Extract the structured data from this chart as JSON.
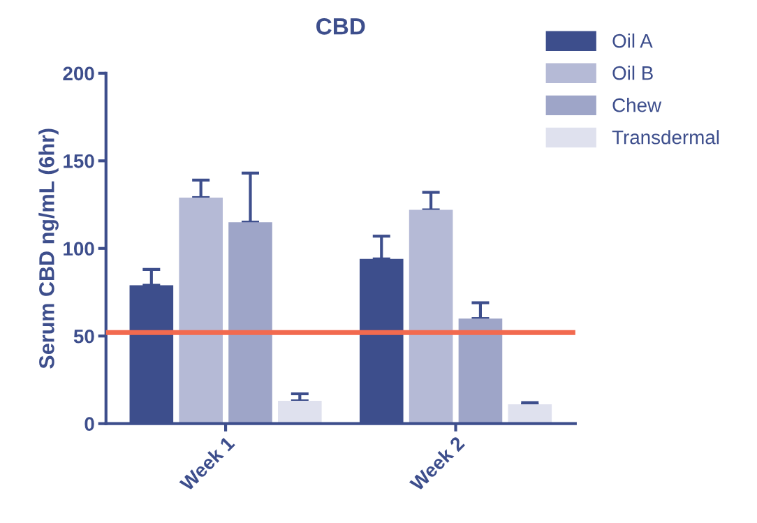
{
  "chart_data": {
    "type": "bar",
    "title": "CBD",
    "ylabel": "Serum CBD ng/mL (6hr)",
    "categories": [
      "Week 1",
      "Week 2"
    ],
    "series": [
      {
        "name": "Oil A",
        "color": "#3d4e8c",
        "values": [
          79,
          94
        ],
        "errors": [
          [
            79,
            88
          ],
          [
            94,
            107
          ]
        ]
      },
      {
        "name": "Oil B",
        "color": "#b5bad6",
        "values": [
          129,
          122
        ],
        "errors": [
          [
            129,
            139
          ],
          [
            122,
            132
          ]
        ]
      },
      {
        "name": "Chew",
        "color": "#9ea5c8",
        "values": [
          115,
          60
        ],
        "errors": [
          [
            115,
            143
          ],
          [
            60,
            69
          ]
        ]
      },
      {
        "name": "Transdermal",
        "color": "#dfe1ee",
        "values": [
          13,
          11
        ],
        "errors": [
          [
            13,
            17
          ],
          [
            11,
            12
          ]
        ]
      }
    ],
    "ylim": [
      0,
      200
    ],
    "yticks": [
      0,
      50,
      100,
      150,
      200
    ],
    "ref_lines": [
      {
        "axis": "y",
        "value": 52,
        "color": "#f26a4f"
      }
    ],
    "legend": "top right",
    "grid": false
  }
}
